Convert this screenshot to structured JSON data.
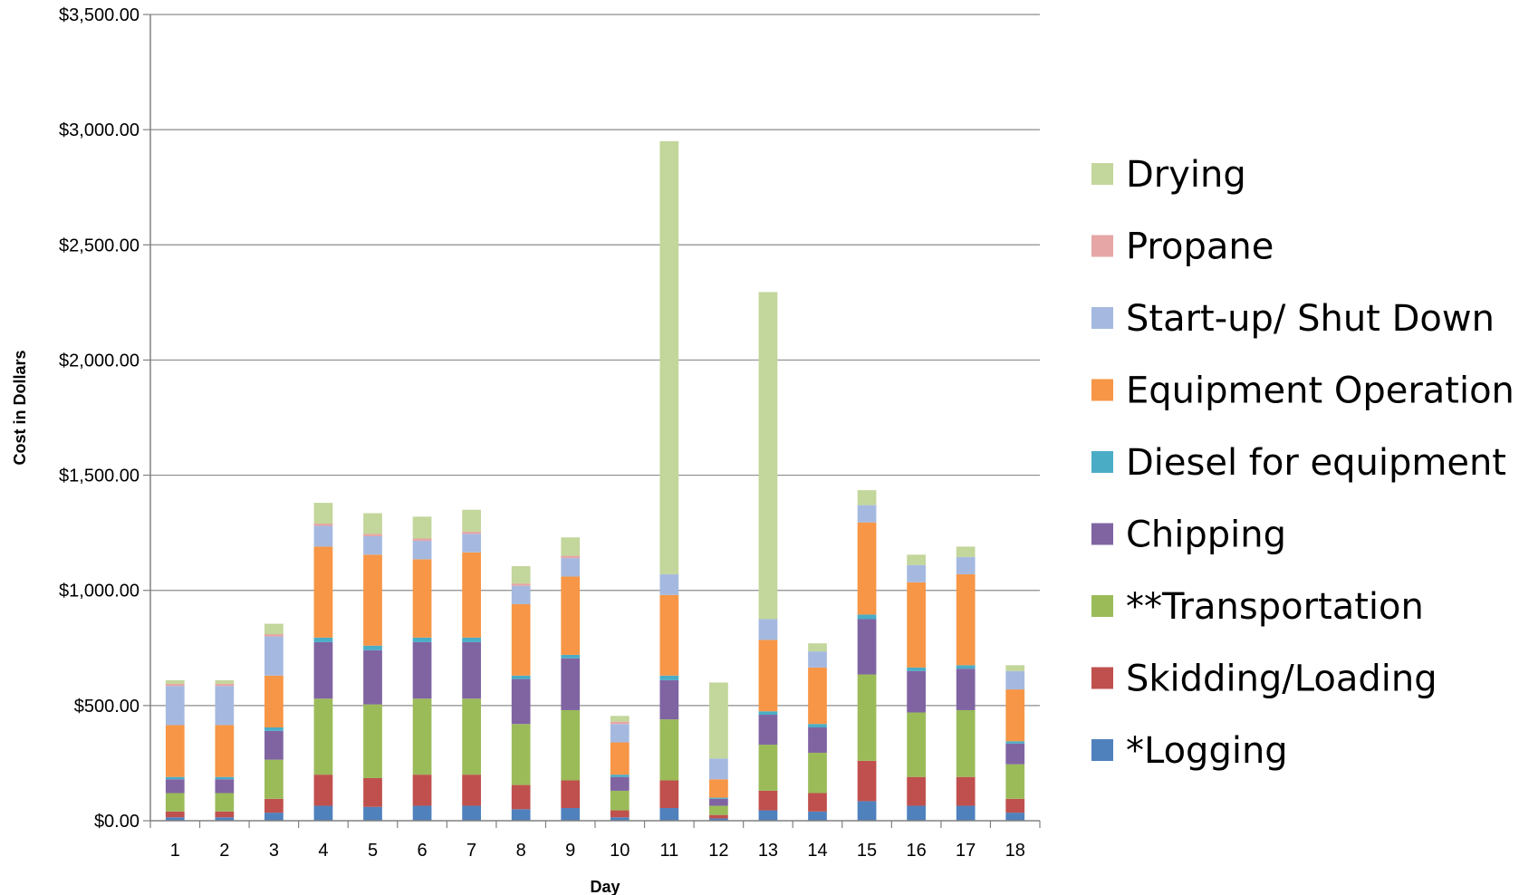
{
  "chart_data": {
    "type": "bar",
    "stacked": true,
    "xlabel": "Day",
    "ylabel": "Cost in Dollars",
    "ylim": [
      0,
      3500
    ],
    "yticks": [
      "$0.00",
      "$500.00",
      "$1,000.00",
      "$1,500.00",
      "$2,000.00",
      "$2,500.00",
      "$3,000.00",
      "$3,500.00"
    ],
    "grid": true,
    "legend_position": "right",
    "categories": [
      "1",
      "2",
      "3",
      "4",
      "5",
      "6",
      "7",
      "8",
      "9",
      "10",
      "11",
      "12",
      "13",
      "14",
      "15",
      "16",
      "17",
      "18"
    ],
    "series": [
      {
        "name": "*Logging",
        "color": "#4f81bd",
        "values": [
          15,
          15,
          35,
          65,
          60,
          65,
          65,
          50,
          55,
          15,
          55,
          10,
          45,
          40,
          85,
          65,
          65,
          35
        ]
      },
      {
        "name": "Skidding/Loading",
        "color": "#c0504d",
        "values": [
          25,
          25,
          60,
          135,
          125,
          135,
          135,
          105,
          120,
          30,
          120,
          15,
          85,
          80,
          175,
          125,
          125,
          60
        ]
      },
      {
        "name": "**Transportation",
        "color": "#9bbb59",
        "values": [
          80,
          80,
          170,
          330,
          320,
          330,
          330,
          265,
          305,
          85,
          265,
          40,
          200,
          175,
          375,
          280,
          290,
          150
        ]
      },
      {
        "name": "Chipping",
        "color": "#8064a2",
        "values": [
          60,
          60,
          125,
          245,
          235,
          245,
          245,
          195,
          225,
          60,
          170,
          30,
          130,
          110,
          240,
          180,
          180,
          90
        ]
      },
      {
        "name": "Diesel for equipment",
        "color": "#4bacc6",
        "values": [
          10,
          10,
          15,
          20,
          20,
          20,
          20,
          15,
          15,
          10,
          20,
          5,
          15,
          15,
          20,
          15,
          15,
          10
        ]
      },
      {
        "name": "Equipment Operation",
        "color": "#f79646",
        "values": [
          225,
          225,
          225,
          395,
          395,
          340,
          370,
          310,
          340,
          140,
          350,
          80,
          310,
          245,
          400,
          370,
          395,
          225
        ]
      },
      {
        "name": "Start-up/ Shut Down",
        "color": "#a5b9e0",
        "values": [
          170,
          170,
          170,
          90,
          80,
          80,
          80,
          80,
          80,
          80,
          90,
          90,
          90,
          70,
          75,
          75,
          75,
          80
        ]
      },
      {
        "name": "Propane",
        "color": "#e6a6a5",
        "values": [
          10,
          10,
          10,
          10,
          10,
          10,
          10,
          10,
          10,
          10,
          0,
          0,
          0,
          0,
          0,
          0,
          0,
          0
        ]
      },
      {
        "name": "Drying",
        "color": "#c3d69b",
        "values": [
          15,
          15,
          45,
          90,
          90,
          95,
          95,
          75,
          80,
          25,
          1880,
          330,
          1420,
          35,
          65,
          45,
          45,
          25
        ]
      }
    ]
  }
}
